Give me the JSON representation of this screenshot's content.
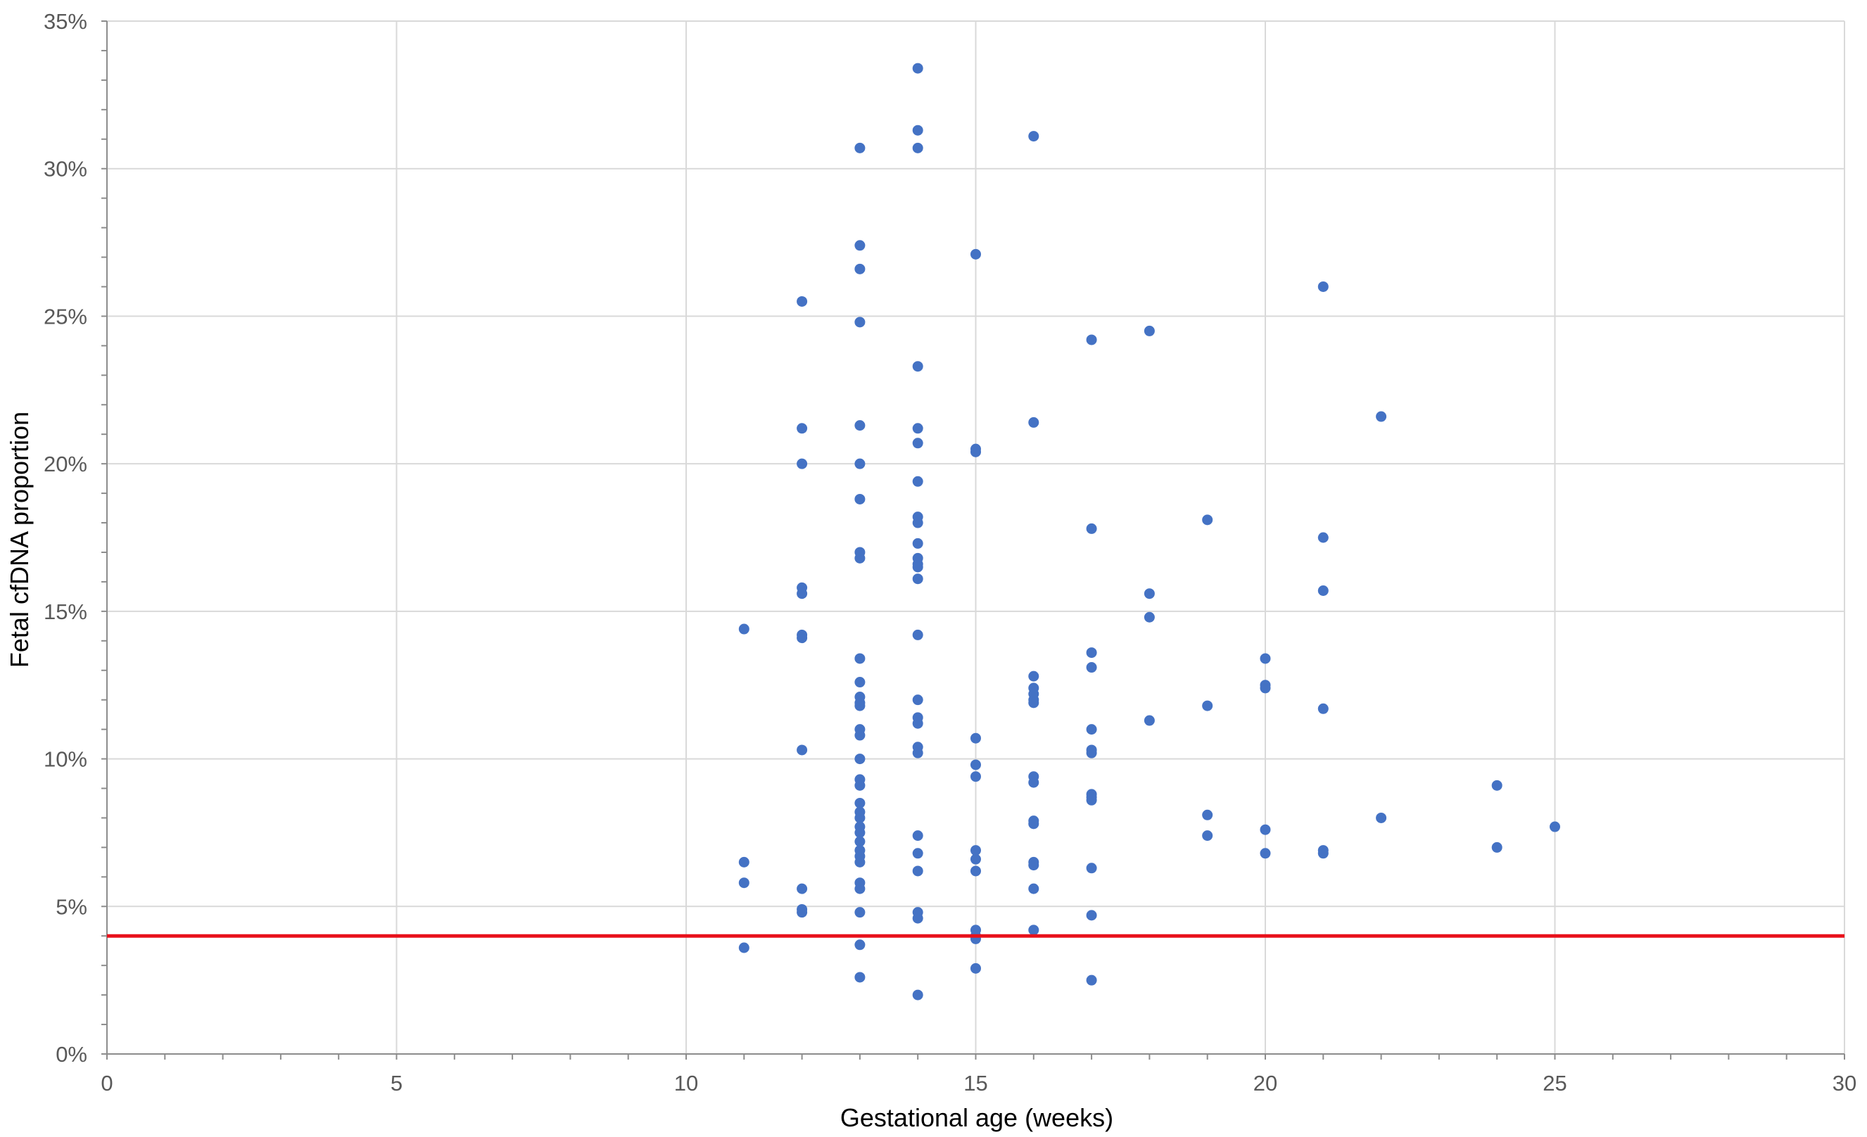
{
  "chart_data": {
    "type": "scatter",
    "title": "",
    "xlabel": "Gestational age (weeks)",
    "ylabel": "Fetal cfDNA proportion",
    "xlim": [
      0,
      30
    ],
    "ylim": [
      0,
      0.35
    ],
    "x_ticks": [
      0,
      5,
      10,
      15,
      20,
      25,
      30
    ],
    "x_tick_labels": [
      "0",
      "5",
      "10",
      "15",
      "20",
      "25",
      "30"
    ],
    "y_ticks": [
      0,
      0.05,
      0.1,
      0.15,
      0.2,
      0.25,
      0.3,
      0.35
    ],
    "y_tick_labels": [
      "0%",
      "5%",
      "10%",
      "15%",
      "20%",
      "25%",
      "30%",
      "35%"
    ],
    "grid": true,
    "legend": "none",
    "point_color": "#4472C4",
    "threshold": {
      "y": 0.04,
      "color": "#E8111B"
    },
    "points": [
      [
        11,
        0.144
      ],
      [
        11,
        0.065
      ],
      [
        11,
        0.058
      ],
      [
        11,
        0.036
      ],
      [
        12,
        0.255
      ],
      [
        12,
        0.212
      ],
      [
        12,
        0.2
      ],
      [
        12,
        0.158
      ],
      [
        12,
        0.156
      ],
      [
        12,
        0.142
      ],
      [
        12,
        0.141
      ],
      [
        12,
        0.103
      ],
      [
        12,
        0.056
      ],
      [
        12,
        0.049
      ],
      [
        12,
        0.048
      ],
      [
        13,
        0.307
      ],
      [
        13,
        0.274
      ],
      [
        13,
        0.266
      ],
      [
        13,
        0.248
      ],
      [
        13,
        0.213
      ],
      [
        13,
        0.2
      ],
      [
        13,
        0.188
      ],
      [
        13,
        0.17
      ],
      [
        13,
        0.168
      ],
      [
        13,
        0.134
      ],
      [
        13,
        0.126
      ],
      [
        13,
        0.121
      ],
      [
        13,
        0.119
      ],
      [
        13,
        0.118
      ],
      [
        13,
        0.11
      ],
      [
        13,
        0.108
      ],
      [
        13,
        0.1
      ],
      [
        13,
        0.093
      ],
      [
        13,
        0.091
      ],
      [
        13,
        0.085
      ],
      [
        13,
        0.082
      ],
      [
        13,
        0.08
      ],
      [
        13,
        0.077
      ],
      [
        13,
        0.075
      ],
      [
        13,
        0.072
      ],
      [
        13,
        0.069
      ],
      [
        13,
        0.067
      ],
      [
        13,
        0.065
      ],
      [
        13,
        0.058
      ],
      [
        13,
        0.056
      ],
      [
        13,
        0.048
      ],
      [
        13,
        0.037
      ],
      [
        13,
        0.026
      ],
      [
        14,
        0.334
      ],
      [
        14,
        0.313
      ],
      [
        14,
        0.307
      ],
      [
        14,
        0.233
      ],
      [
        14,
        0.212
      ],
      [
        14,
        0.207
      ],
      [
        14,
        0.194
      ],
      [
        14,
        0.182
      ],
      [
        14,
        0.18
      ],
      [
        14,
        0.173
      ],
      [
        14,
        0.168
      ],
      [
        14,
        0.166
      ],
      [
        14,
        0.165
      ],
      [
        14,
        0.161
      ],
      [
        14,
        0.142
      ],
      [
        14,
        0.12
      ],
      [
        14,
        0.114
      ],
      [
        14,
        0.112
      ],
      [
        14,
        0.104
      ],
      [
        14,
        0.102
      ],
      [
        14,
        0.074
      ],
      [
        14,
        0.068
      ],
      [
        14,
        0.062
      ],
      [
        14,
        0.048
      ],
      [
        14,
        0.046
      ],
      [
        14,
        0.02
      ],
      [
        15,
        0.271
      ],
      [
        15,
        0.205
      ],
      [
        15,
        0.204
      ],
      [
        15,
        0.107
      ],
      [
        15,
        0.098
      ],
      [
        15,
        0.094
      ],
      [
        15,
        0.069
      ],
      [
        15,
        0.066
      ],
      [
        15,
        0.062
      ],
      [
        15,
        0.042
      ],
      [
        15,
        0.04
      ],
      [
        15,
        0.039
      ],
      [
        15,
        0.029
      ],
      [
        16,
        0.311
      ],
      [
        16,
        0.214
      ],
      [
        16,
        0.128
      ],
      [
        16,
        0.124
      ],
      [
        16,
        0.122
      ],
      [
        16,
        0.12
      ],
      [
        16,
        0.119
      ],
      [
        16,
        0.094
      ],
      [
        16,
        0.092
      ],
      [
        16,
        0.079
      ],
      [
        16,
        0.078
      ],
      [
        16,
        0.065
      ],
      [
        16,
        0.064
      ],
      [
        16,
        0.056
      ],
      [
        16,
        0.042
      ],
      [
        17,
        0.242
      ],
      [
        17,
        0.178
      ],
      [
        17,
        0.136
      ],
      [
        17,
        0.131
      ],
      [
        17,
        0.11
      ],
      [
        17,
        0.103
      ],
      [
        17,
        0.102
      ],
      [
        17,
        0.088
      ],
      [
        17,
        0.087
      ],
      [
        17,
        0.086
      ],
      [
        17,
        0.063
      ],
      [
        17,
        0.047
      ],
      [
        17,
        0.025
      ],
      [
        18,
        0.245
      ],
      [
        18,
        0.156
      ],
      [
        18,
        0.148
      ],
      [
        18,
        0.113
      ],
      [
        19,
        0.181
      ],
      [
        19,
        0.118
      ],
      [
        19,
        0.081
      ],
      [
        19,
        0.074
      ],
      [
        20,
        0.134
      ],
      [
        20,
        0.125
      ],
      [
        20,
        0.124
      ],
      [
        20,
        0.076
      ],
      [
        20,
        0.068
      ],
      [
        21,
        0.26
      ],
      [
        21,
        0.175
      ],
      [
        21,
        0.157
      ],
      [
        21,
        0.117
      ],
      [
        21,
        0.069
      ],
      [
        21,
        0.068
      ],
      [
        22,
        0.216
      ],
      [
        22,
        0.08
      ],
      [
        24,
        0.091
      ],
      [
        24,
        0.07
      ],
      [
        25,
        0.077
      ]
    ]
  }
}
